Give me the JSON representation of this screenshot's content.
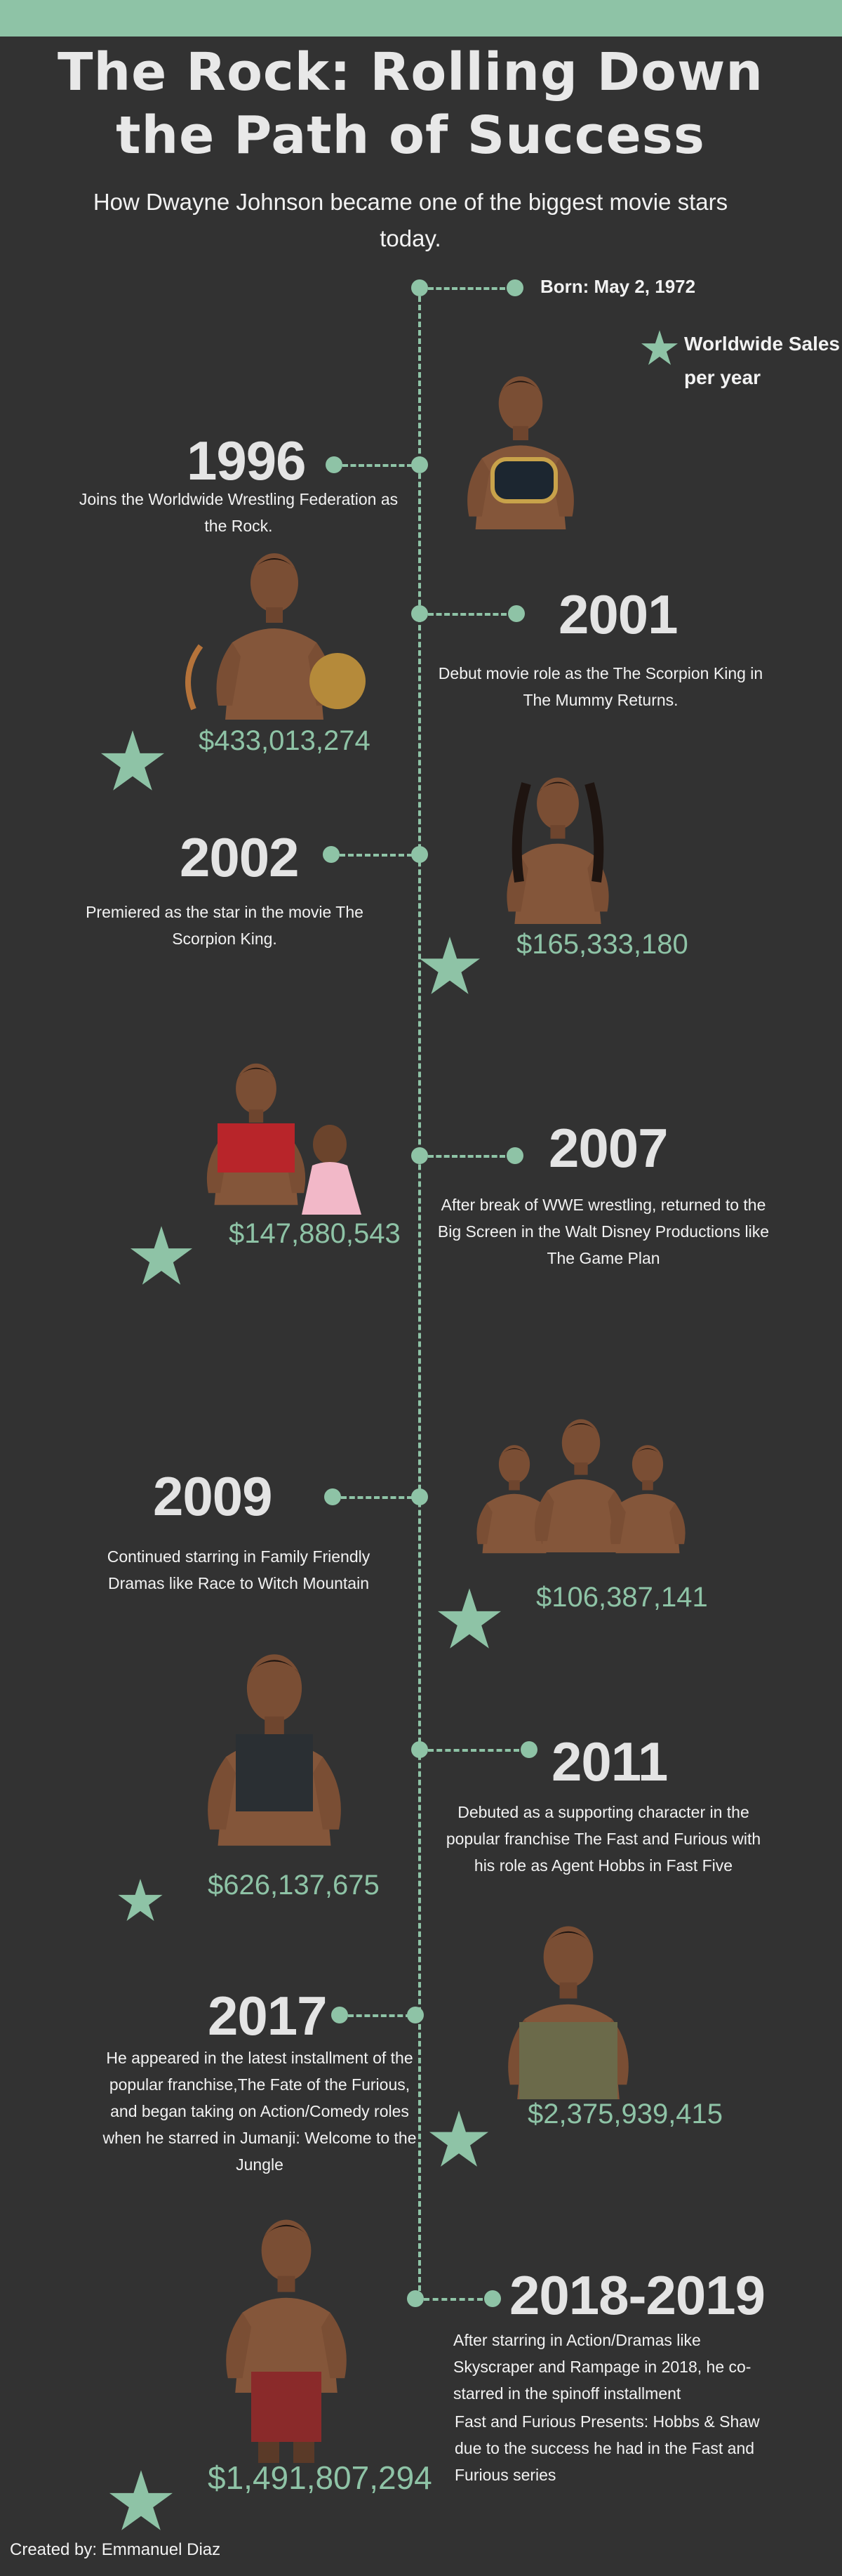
{
  "header": {
    "title_line1": "The Rock: Rolling Down",
    "title_line2": "the Path of Success",
    "subtitle": "How Dwayne Johnson became one of the biggest movie stars today."
  },
  "born": "Born: May 2, 1972",
  "legend": {
    "line1": "Worldwide Sales",
    "line2": "per year",
    "icon": "star-icon"
  },
  "accent_color": "#8ec3a6",
  "background_color": "#323232",
  "milestones": [
    {
      "year": "1996",
      "description": "Joins the Worldwide Wrestling Federation as the Rock."
    },
    {
      "year": "2001",
      "description": "Debut movie role as the The Scorpion King in The Mummy Returns.",
      "sales": "$433,013,274"
    },
    {
      "year": "2002",
      "description": "Premiered as the star in the movie The Scorpion King.",
      "sales": "$165,333,180"
    },
    {
      "year": "2007",
      "description": "After break of WWE wrestling, returned to the Big Screen in the Walt Disney Productions like The Game Plan",
      "sales": "$147,880,543"
    },
    {
      "year": "2009",
      "description": "Continued starring in Family Friendly Dramas like Race to Witch Mountain",
      "sales": "$106,387,141"
    },
    {
      "year": "2011",
      "description": "Debuted as a supporting character in the popular franchise The Fast and Furious with his role as Agent Hobbs in Fast Five",
      "sales": "$626,137,675"
    },
    {
      "year": "2017",
      "description": "He appeared in the latest installment of the popular franchise,The Fate of the Furious, and began taking on Action/Comedy roles when he starred in Jumanji: Welcome to the Jungle",
      "sales": "$2,375,939,415"
    },
    {
      "year": "2018-2019",
      "description_line1": "After starring in Action/Dramas like Skyscraper and Rampage in 2018, he co-starred in the spinoff installment",
      "description_line2": "Fast and Furious Presents: Hobbs & Shaw due to the success he had in the Fast and Furious series",
      "sales": "$1,491,807,294"
    }
  ],
  "footer": "Created by: Emmanuel Diaz"
}
